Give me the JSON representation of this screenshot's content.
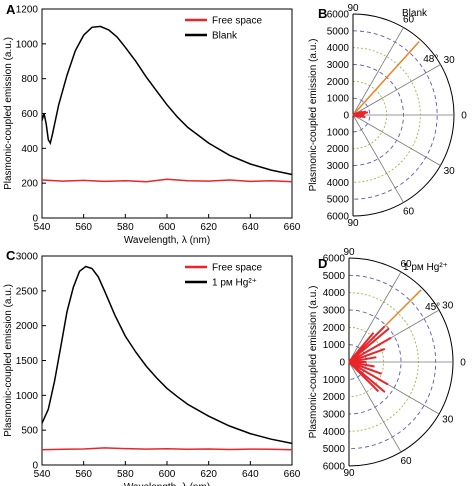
{
  "chart_data": [
    {
      "panel": "A",
      "type": "line",
      "xlabel": "Wavelength, λ (nm)",
      "ylabel": "Plasmonic-coupled emission (a.u.)",
      "xlim": [
        540,
        660
      ],
      "ylim": [
        0,
        1200
      ],
      "xticks": [
        540,
        560,
        580,
        600,
        620,
        640,
        660
      ],
      "yticks": [
        0,
        200,
        400,
        600,
        800,
        1000,
        1200
      ],
      "legend": "top-right",
      "series": [
        {
          "name": "Free space",
          "color": "#e8262a",
          "x": [
            540,
            550,
            560,
            570,
            580,
            590,
            600,
            610,
            620,
            630,
            640,
            650,
            660
          ],
          "y": [
            218,
            212,
            216,
            210,
            214,
            208,
            222,
            214,
            212,
            218,
            210,
            214,
            208
          ]
        },
        {
          "name": "Blank",
          "color": "#000000",
          "x": [
            540,
            541,
            542,
            543,
            544,
            545,
            548,
            552,
            556,
            560,
            564,
            568,
            572,
            576,
            580,
            585,
            590,
            595,
            600,
            605,
            610,
            620,
            630,
            640,
            650,
            660
          ],
          "y": [
            560,
            600,
            540,
            450,
            430,
            480,
            650,
            820,
            960,
            1050,
            1095,
            1100,
            1080,
            1040,
            980,
            900,
            810,
            730,
            650,
            580,
            520,
            430,
            360,
            310,
            275,
            250
          ]
        }
      ]
    },
    {
      "panel": "B",
      "type": "polar",
      "rlim": [
        0,
        6000
      ],
      "rticks": [
        0,
        1000,
        2000,
        3000,
        4000,
        5000,
        6000
      ],
      "angle_ticks": [
        90,
        60,
        30,
        0
      ],
      "angle_annotation": "48°",
      "label": "Blank",
      "ylabel": "Plasmonic-coupled emission (a.u.)",
      "lobe": {
        "color": "#e8262a",
        "angles": [
          0,
          5,
          10,
          15,
          20,
          25,
          30,
          -5,
          -10,
          -15,
          -20
        ],
        "r": [
          500,
          700,
          900,
          800,
          600,
          400,
          200,
          650,
          750,
          500,
          300
        ]
      }
    },
    {
      "panel": "C",
      "type": "line",
      "xlabel": "Wavelength, λ (nm)",
      "ylabel": "Plasmonic-coupled emission (a.u.)",
      "xlim": [
        540,
        660
      ],
      "ylim": [
        0,
        3000
      ],
      "xticks": [
        540,
        560,
        580,
        600,
        620,
        640,
        660
      ],
      "yticks": [
        0,
        500,
        1000,
        1500,
        2000,
        2500,
        3000
      ],
      "legend": "top-right",
      "series": [
        {
          "name": "Free space",
          "color": "#e8262a",
          "x": [
            540,
            550,
            560,
            570,
            580,
            590,
            600,
            610,
            620,
            630,
            640,
            650,
            660
          ],
          "y": [
            220,
            225,
            230,
            245,
            235,
            228,
            232,
            225,
            230,
            222,
            228,
            225,
            220
          ]
        },
        {
          "name": "1 pм Hg²⁺",
          "color": "#000000",
          "x": [
            540,
            543,
            546,
            549,
            552,
            555,
            558,
            561,
            564,
            567,
            570,
            575,
            580,
            585,
            590,
            595,
            600,
            605,
            610,
            620,
            630,
            640,
            650,
            660
          ],
          "y": [
            600,
            800,
            1200,
            1700,
            2200,
            2550,
            2780,
            2850,
            2820,
            2700,
            2500,
            2150,
            1850,
            1620,
            1420,
            1250,
            1100,
            980,
            870,
            700,
            560,
            450,
            370,
            310
          ]
        }
      ]
    },
    {
      "panel": "D",
      "type": "polar",
      "rlim": [
        0,
        6000
      ],
      "rticks": [
        0,
        1000,
        2000,
        3000,
        4000,
        5000,
        6000
      ],
      "angle_ticks": [
        90,
        60,
        30,
        0
      ],
      "angle_annotation": "45°",
      "label": "1 pм Hg²⁺",
      "ylabel": "Plasmonic-coupled emission (a.u.)",
      "lobe": {
        "color": "#e8262a",
        "angles": [
          0,
          10,
          20,
          30,
          40,
          45,
          50,
          -10,
          -20,
          -30,
          -40,
          -45
        ],
        "r": [
          1000,
          1600,
          2200,
          2800,
          3000,
          2900,
          2200,
          1500,
          2000,
          2600,
          2700,
          2400
        ]
      }
    }
  ],
  "panels": {
    "A": {
      "letter": "A"
    },
    "B": {
      "letter": "B"
    },
    "C": {
      "letter": "C"
    },
    "D": {
      "letter": "D"
    }
  }
}
